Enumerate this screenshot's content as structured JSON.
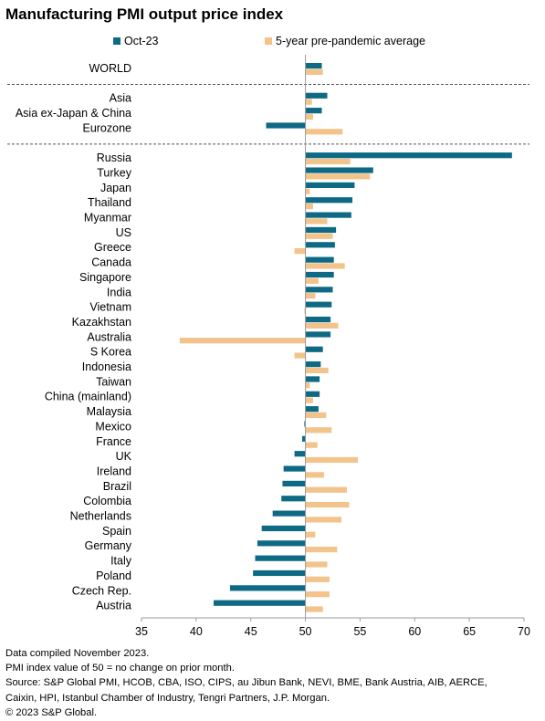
{
  "title": "Manufacturing PMI output price index",
  "colors": {
    "oct": "#0e6a84",
    "avg": "#f2c38a",
    "axis": "#9a9a9a",
    "divider": "#555555"
  },
  "chart_data": {
    "type": "bar",
    "orientation": "horizontal",
    "title": "Manufacturing PMI output price index",
    "baseline": 50,
    "xlim": [
      35,
      70
    ],
    "xticks": [
      35,
      40,
      45,
      50,
      55,
      60,
      65,
      70
    ],
    "legend_position": "top",
    "groups": [
      {
        "categories": [
          "WORLD"
        ]
      },
      {
        "categories": [
          "Asia",
          "Asia ex-Japan & China",
          "Eurozone"
        ]
      },
      {
        "categories": [
          "Russia",
          "Turkey",
          "Japan",
          "Thailand",
          "Myanmar",
          "US",
          "Greece",
          "Canada",
          "Singapore",
          "India",
          "Vietnam",
          "Kazakhstan",
          "Australia",
          "S Korea",
          "Indonesia",
          "Taiwan",
          "China (mainland)",
          "Malaysia",
          "Mexico",
          "France",
          "UK",
          "Ireland",
          "Brazil",
          "Colombia",
          "Netherlands",
          "Spain",
          "Germany",
          "Italy",
          "Poland",
          "Czech Rep.",
          "Austria"
        ]
      }
    ],
    "series": [
      {
        "name": "Oct-23",
        "values": [
          51.5,
          52.0,
          51.5,
          46.4,
          68.9,
          56.2,
          54.5,
          54.3,
          54.2,
          52.8,
          52.7,
          52.6,
          52.6,
          52.5,
          52.4,
          52.3,
          52.3,
          51.6,
          51.4,
          51.3,
          51.3,
          51.2,
          49.9,
          49.7,
          49.0,
          48.0,
          47.9,
          47.8,
          47.0,
          46.0,
          45.6,
          45.4,
          45.2,
          43.1,
          41.6
        ]
      },
      {
        "name": "5-year pre-pandemic average",
        "values": [
          51.6,
          50.6,
          50.7,
          53.4,
          54.1,
          55.9,
          50.4,
          50.7,
          52.0,
          52.5,
          49.0,
          53.6,
          51.2,
          50.9,
          49.9,
          53.0,
          38.5,
          49.0,
          52.1,
          50.4,
          50.7,
          51.9,
          52.4,
          51.1,
          54.8,
          51.7,
          53.8,
          54.0,
          53.3,
          50.9,
          52.9,
          52.0,
          52.2,
          52.2,
          51.6
        ]
      }
    ]
  },
  "notes": [
    "Data compiled November 2023.",
    "PMI index value of 50 = no change on prior month.",
    "Source: S&P Global PMI, HCOB, CBA, ISO, CIPS, au Jibun Bank, NEVI, BME, Bank Austria, AIB, AERCE,",
    "Caixin, HPI, Istanbul Chamber of Industry, Tengri Partners, J.P. Morgan.",
    "© 2023 S&P Global."
  ]
}
